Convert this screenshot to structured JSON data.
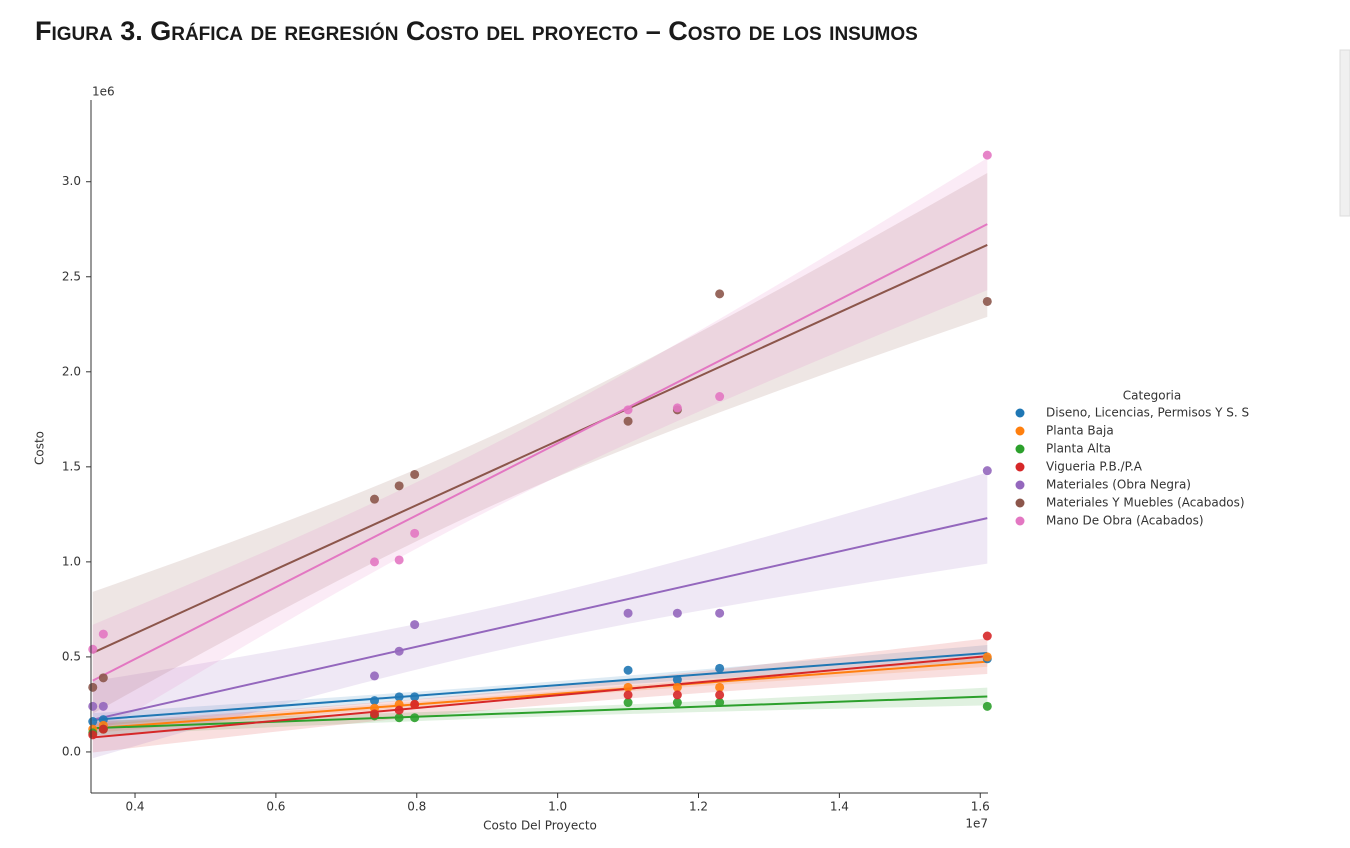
{
  "chart_data": {
    "type": "scatter",
    "title": "Figura 3. Gráfica de regresión Costo del proyecto – Costo de los insumos",
    "x_label": "Costo Del Proyecto",
    "y_label": "Costo",
    "x_offset_label": "1e7",
    "y_offset_label": "1e6",
    "legend_title": "Categoria",
    "legend": "right",
    "regression": true,
    "x": [
      0.34,
      0.355,
      0.74,
      0.775,
      0.797,
      1.1,
      1.17,
      1.23,
      1.61
    ],
    "series": [
      {
        "name": "Diseno, Licencias, Permisos Y S. S",
        "color": "#1f77b4",
        "values": [
          0.16,
          0.17,
          0.27,
          0.29,
          0.29,
          0.43,
          0.38,
          0.44,
          0.49
        ]
      },
      {
        "name": "Planta Baja",
        "color": "#ff7f0e",
        "values": [
          0.12,
          0.14,
          0.23,
          0.25,
          0.25,
          0.34,
          0.34,
          0.34,
          0.5
        ]
      },
      {
        "name": "Planta Alta",
        "color": "#2ca02c",
        "values": [
          0.1,
          0.12,
          0.19,
          0.18,
          0.18,
          0.26,
          0.26,
          0.26,
          0.24
        ]
      },
      {
        "name": "Vigueria P.B./P.A",
        "color": "#d62728",
        "values": [
          0.09,
          0.12,
          0.2,
          0.22,
          0.25,
          0.3,
          0.3,
          0.3,
          0.61
        ]
      },
      {
        "name": "Materiales (Obra Negra)",
        "color": "#9467bd",
        "values": [
          0.24,
          0.24,
          0.4,
          0.53,
          0.67,
          0.73,
          0.73,
          0.73,
          1.48
        ]
      },
      {
        "name": "Materiales Y Muebles (Acabados)",
        "color": "#8c564b",
        "values": [
          0.34,
          0.39,
          1.33,
          1.4,
          1.46,
          1.74,
          1.8,
          2.41,
          2.37
        ]
      },
      {
        "name": "Mano De Obra (Acabados)",
        "color": "#e377c2",
        "values": [
          0.54,
          0.62,
          1.0,
          1.01,
          1.15,
          1.8,
          1.81,
          1.87,
          3.14
        ]
      }
    ],
    "xlim": [
      0.3375,
      1.611
    ],
    "ylim": [
      -0.216,
      3.43
    ],
    "xticks": [
      0.4,
      0.6,
      0.8,
      {
        "value": 1.0,
        "label": "1.0"
      },
      1.2,
      1.4,
      1.6
    ],
    "yticks": [
      {
        "value": 0,
        "label": "0.0"
      },
      0.5,
      {
        "value": 1.0,
        "label": "1.0"
      },
      1.5,
      {
        "value": 2.0,
        "label": "2.0"
      },
      2.5,
      {
        "value": 3.0,
        "label": "3.0"
      }
    ]
  }
}
